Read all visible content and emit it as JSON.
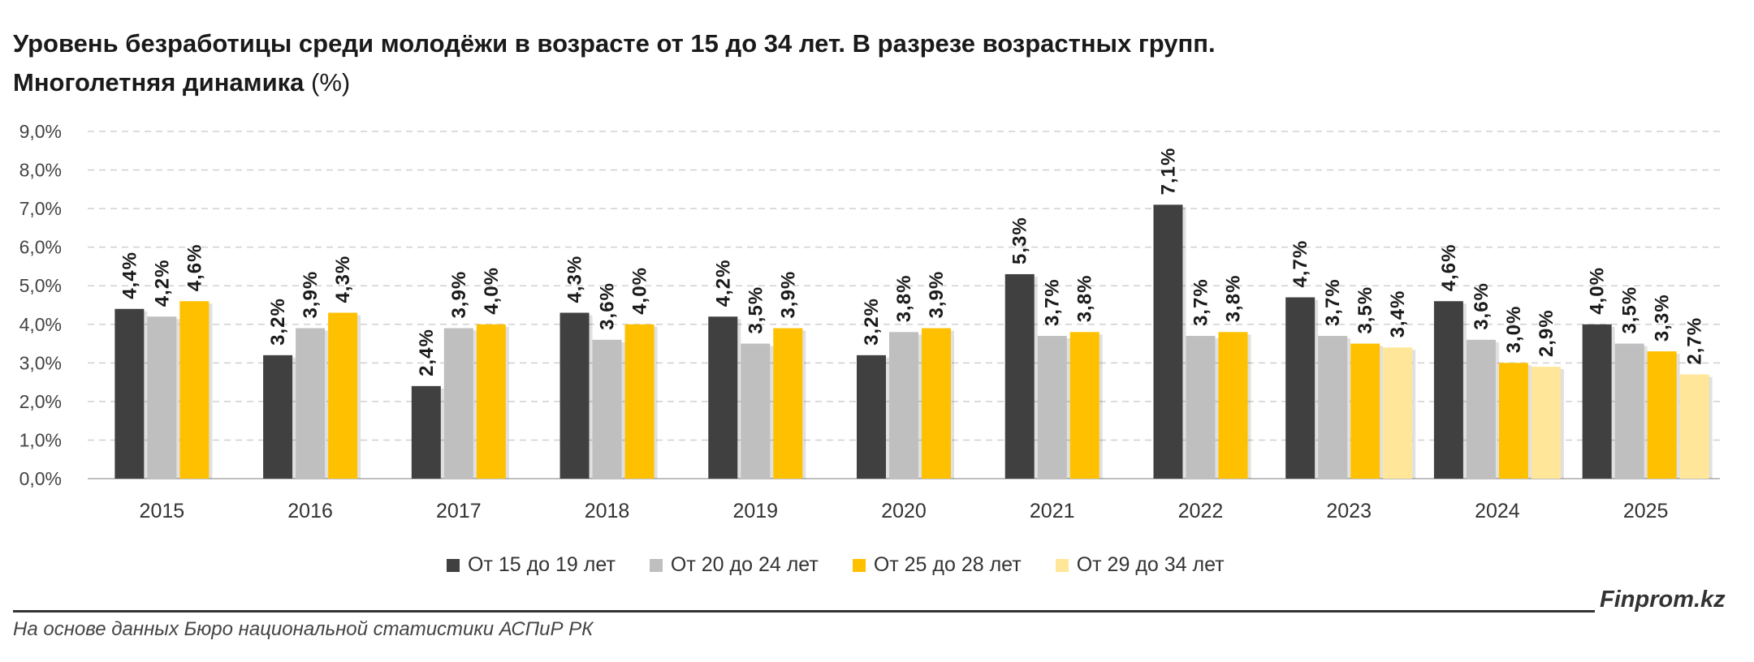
{
  "header": {
    "title_line1": "Уровень безработицы среди молодёжи в возрасте от 15 до 34 лет. В разрезе возрастных групп.",
    "title_line2": "Многолетняя динамика",
    "title_unit": "(%)"
  },
  "footer": {
    "source": "На основе данных Бюро национальной статистики АСПиР РК",
    "brand": "Finprom.kz"
  },
  "chart_data": {
    "type": "bar",
    "title": "Уровень безработицы среди молодёжи в возрасте от 15 до 34 лет. В разрезе возрастных групп. Многолетняя динамика (%)",
    "categories": [
      "2015",
      "2016",
      "2017",
      "2018",
      "2019",
      "2020",
      "2021",
      "2022",
      "2023",
      "2024",
      "2025"
    ],
    "ylim": [
      0,
      9
    ],
    "ytick_labels": [
      "0,0%",
      "1,0%",
      "2,0%",
      "3,0%",
      "4,0%",
      "5,0%",
      "6,0%",
      "7,0%",
      "8,0%",
      "9,0%"
    ],
    "grid": "horizontal dashed",
    "legend_position": "bottom",
    "series": [
      {
        "name": "От 15 до 19 лет",
        "color": "#404040",
        "values": [
          4.4,
          3.2,
          2.4,
          4.3,
          4.2,
          3.2,
          5.3,
          7.1,
          4.7,
          4.6,
          4.0
        ],
        "labels": [
          "4,4%",
          "3,2%",
          "2,4%",
          "4,3%",
          "4,2%",
          "3,2%",
          "5,3%",
          "7,1%",
          "4,7%",
          "4,6%",
          "4,0%"
        ]
      },
      {
        "name": "От 20 до 24 лет",
        "color": "#bfbfbf",
        "values": [
          4.2,
          3.9,
          3.9,
          3.6,
          3.5,
          3.8,
          3.7,
          3.7,
          3.7,
          3.6,
          3.5
        ],
        "labels": [
          "4,2%",
          "3,9%",
          "3,9%",
          "3,6%",
          "3,5%",
          "3,8%",
          "3,7%",
          "3,7%",
          "3,7%",
          "3,6%",
          "3,5%"
        ]
      },
      {
        "name": "От 25 до 28 лет",
        "color": "#ffc000",
        "values": [
          4.6,
          4.3,
          4.0,
          4.0,
          3.9,
          3.9,
          3.8,
          3.8,
          3.5,
          3.0,
          3.3
        ],
        "labels": [
          "4,6%",
          "4,3%",
          "4,0%",
          "4,0%",
          "3,9%",
          "3,9%",
          "3,8%",
          "3,8%",
          "3,5%",
          "3,0%",
          "3,3%"
        ]
      },
      {
        "name": "От 29 до 34 лет",
        "color": "#ffe699",
        "values": [
          null,
          null,
          null,
          null,
          null,
          null,
          null,
          null,
          3.4,
          2.9,
          2.7
        ],
        "labels": [
          null,
          null,
          null,
          null,
          null,
          null,
          null,
          null,
          "3,4%",
          "2,9%",
          "2,7%"
        ]
      }
    ]
  }
}
